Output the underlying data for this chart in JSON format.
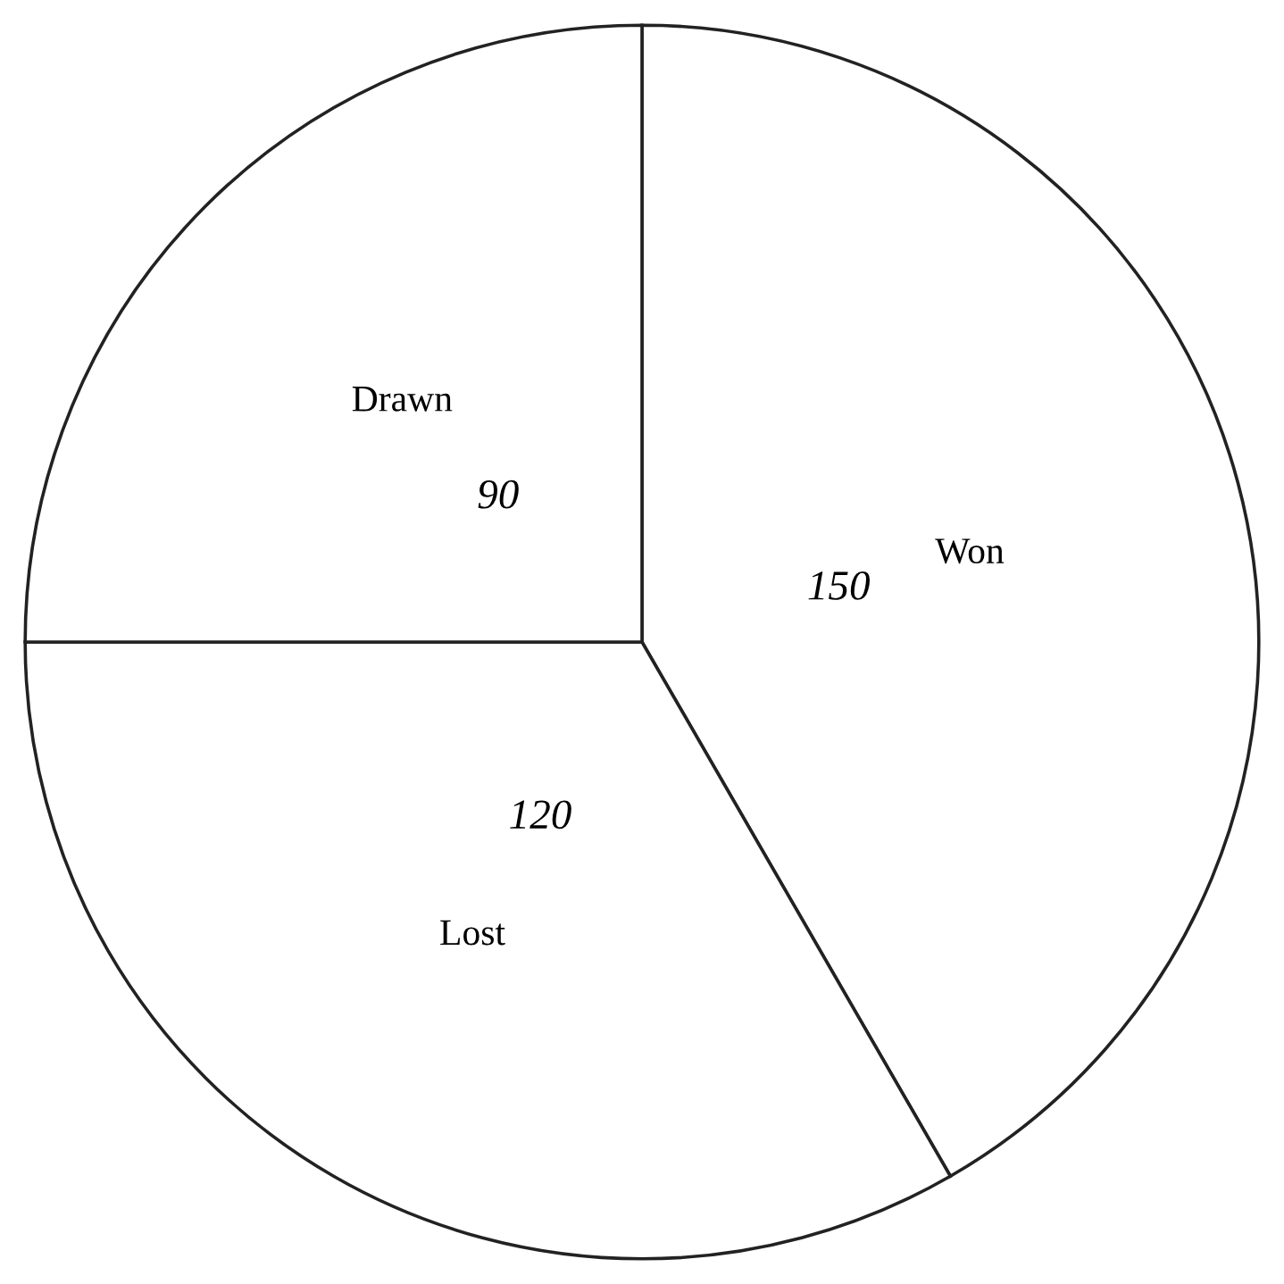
{
  "chart_data": {
    "type": "pie",
    "categories": [
      "Won",
      "Lost",
      "Drawn"
    ],
    "values": [
      150,
      120,
      90
    ],
    "colors": [
      "#ffffff",
      "#ffffff",
      "#ffffff"
    ],
    "data_labels": true,
    "legend": false
  }
}
